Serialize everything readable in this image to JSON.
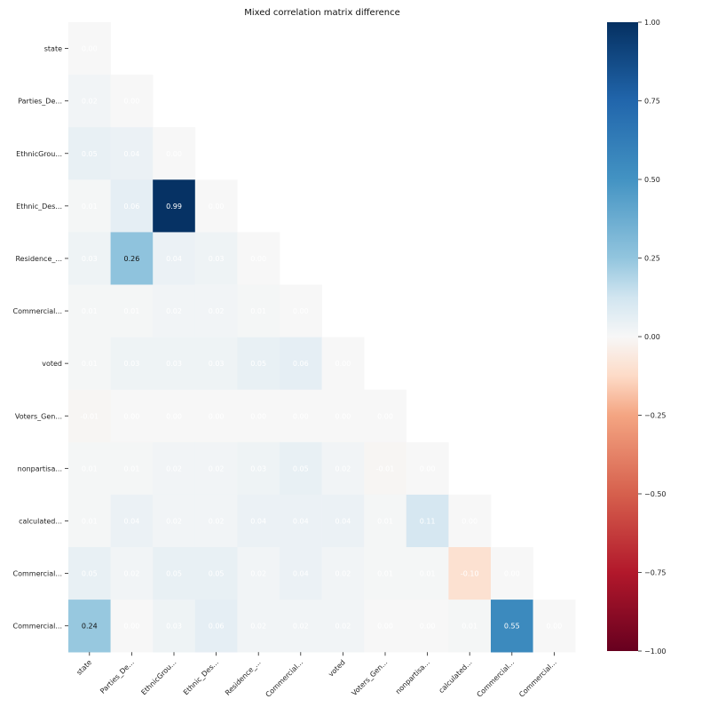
{
  "chart_data": {
    "type": "heatmap",
    "title": "Mixed correlation matrix difference",
    "xlabel": "",
    "ylabel": "",
    "row_labels": [
      "state",
      "Parties_De...",
      "EthnicGrou...",
      "Ethnic_Des...",
      "Residence_...",
      "Commercial...",
      "voted",
      "Voters_Gen...",
      "nonpartisa...",
      "calculated...",
      "Commercial...",
      "Commercial..."
    ],
    "col_labels": [
      "state",
      "Parties_De...",
      "EthnicGrou...",
      "Ethnic_Des...",
      "Residence_...",
      "Commercial...",
      "voted",
      "Voters_Gen...",
      "nonpartisa...",
      "calculated...",
      "Commercial...",
      "Commercial..."
    ],
    "values": [
      [
        0.0
      ],
      [
        0.02,
        0.0
      ],
      [
        0.05,
        0.04,
        0.0
      ],
      [
        0.01,
        0.06,
        0.99,
        0.0
      ],
      [
        0.03,
        0.26,
        0.04,
        0.03,
        0.0
      ],
      [
        0.01,
        0.01,
        0.02,
        0.02,
        0.01,
        0.0
      ],
      [
        0.01,
        0.03,
        0.03,
        0.03,
        0.05,
        0.06,
        0.0
      ],
      [
        -0.01,
        0.0,
        0.0,
        0.0,
        0.0,
        0.0,
        0.0,
        0.0
      ],
      [
        0.01,
        0.01,
        0.02,
        0.02,
        0.03,
        0.05,
        0.02,
        -0.01,
        0.0
      ],
      [
        0.01,
        0.04,
        0.02,
        0.02,
        0.04,
        0.04,
        0.04,
        0.01,
        0.11,
        0.0
      ],
      [
        0.05,
        0.02,
        0.05,
        0.05,
        0.02,
        0.04,
        0.02,
        0.01,
        0.01,
        -0.1,
        0.0
      ],
      [
        0.24,
        0.0,
        0.03,
        0.06,
        0.02,
        0.02,
        0.02,
        0.0,
        0.0,
        0.01,
        0.55,
        0.0
      ]
    ],
    "value_format": "2 decimals",
    "colormap": "RdBu",
    "vmin": -1.0,
    "vmax": 1.0,
    "colorbar_ticks": [
      "1.00",
      "0.75",
      "0.50",
      "0.25",
      "0.00",
      "−0.25",
      "−0.50",
      "−0.75",
      "−1.00"
    ],
    "colorbar_tick_values": [
      1.0,
      0.75,
      0.5,
      0.25,
      0.0,
      -0.25,
      -0.5,
      -0.75,
      -1.0
    ],
    "mask": "upper triangle",
    "grid": false,
    "legend": "colorbar right"
  }
}
